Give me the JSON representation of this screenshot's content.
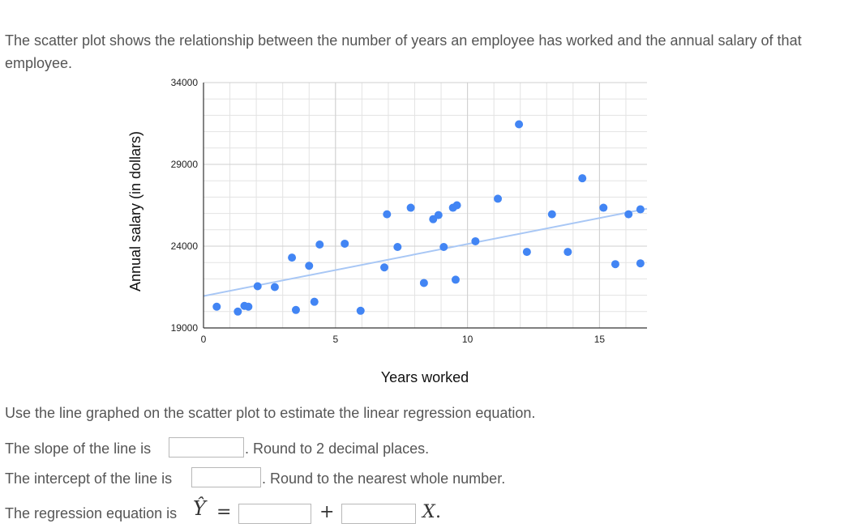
{
  "intro_text": "The scatter plot shows the relationship between the number of years an employee has worked and the annual salary of that employee.",
  "chart_data": {
    "type": "scatter",
    "xlabel": "Years worked",
    "ylabel": "Annual salary (in dollars)",
    "xlim": [
      0,
      16.8
    ],
    "ylim": [
      19000,
      34000
    ],
    "x_ticks": [
      "0",
      "5",
      "10",
      "15"
    ],
    "y_ticks": [
      "19000",
      "24000",
      "29000",
      "34000"
    ],
    "grid": true,
    "points": [
      {
        "x": 0.5,
        "y": 20300
      },
      {
        "x": 1.3,
        "y": 20000
      },
      {
        "x": 1.55,
        "y": 20350
      },
      {
        "x": 1.7,
        "y": 20300
      },
      {
        "x": 2.05,
        "y": 21550
      },
      {
        "x": 2.7,
        "y": 21500
      },
      {
        "x": 3.35,
        "y": 23300
      },
      {
        "x": 3.5,
        "y": 20100
      },
      {
        "x": 4.0,
        "y": 22800
      },
      {
        "x": 4.2,
        "y": 20600
      },
      {
        "x": 4.4,
        "y": 24100
      },
      {
        "x": 5.35,
        "y": 24150
      },
      {
        "x": 5.95,
        "y": 20050
      },
      {
        "x": 6.85,
        "y": 22700
      },
      {
        "x": 6.95,
        "y": 25950
      },
      {
        "x": 7.35,
        "y": 23950
      },
      {
        "x": 7.85,
        "y": 26350
      },
      {
        "x": 8.35,
        "y": 21750
      },
      {
        "x": 8.7,
        "y": 25650
      },
      {
        "x": 8.9,
        "y": 25900
      },
      {
        "x": 9.1,
        "y": 23950
      },
      {
        "x": 9.45,
        "y": 26350
      },
      {
        "x": 9.55,
        "y": 21950
      },
      {
        "x": 9.6,
        "y": 26500
      },
      {
        "x": 10.3,
        "y": 24300
      },
      {
        "x": 11.15,
        "y": 26900
      },
      {
        "x": 11.95,
        "y": 31450
      },
      {
        "x": 12.25,
        "y": 23650
      },
      {
        "x": 13.2,
        "y": 25950
      },
      {
        "x": 13.8,
        "y": 23650
      },
      {
        "x": 14.35,
        "y": 28150
      },
      {
        "x": 15.15,
        "y": 26350
      },
      {
        "x": 15.6,
        "y": 22900
      },
      {
        "x": 16.1,
        "y": 25950
      },
      {
        "x": 16.55,
        "y": 26250
      },
      {
        "x": 16.55,
        "y": 22950
      }
    ],
    "regression_line": {
      "intercept": 20950,
      "slope": 318
    }
  },
  "instruction_text": "Use the line graphed on the scatter plot to estimate the linear regression equation.",
  "slope_question": {
    "label": "The slope of the line is",
    "hint": ". Round to 2 decimal places.",
    "value": ""
  },
  "intercept_question": {
    "label": "The intercept of the line is",
    "hint": ". Round to the nearest whole number.",
    "value": ""
  },
  "equation_question": {
    "label": "The regression equation is",
    "y_hat": "Ŷ",
    "equals": "=",
    "plus": "+",
    "x_var": "X",
    "period": ".",
    "intercept_value": "",
    "slope_value": ""
  },
  "colors": {
    "point": "#4285f4",
    "line": "#a8c7f5",
    "grid": "#e3e3e3",
    "axis": "#333333"
  }
}
